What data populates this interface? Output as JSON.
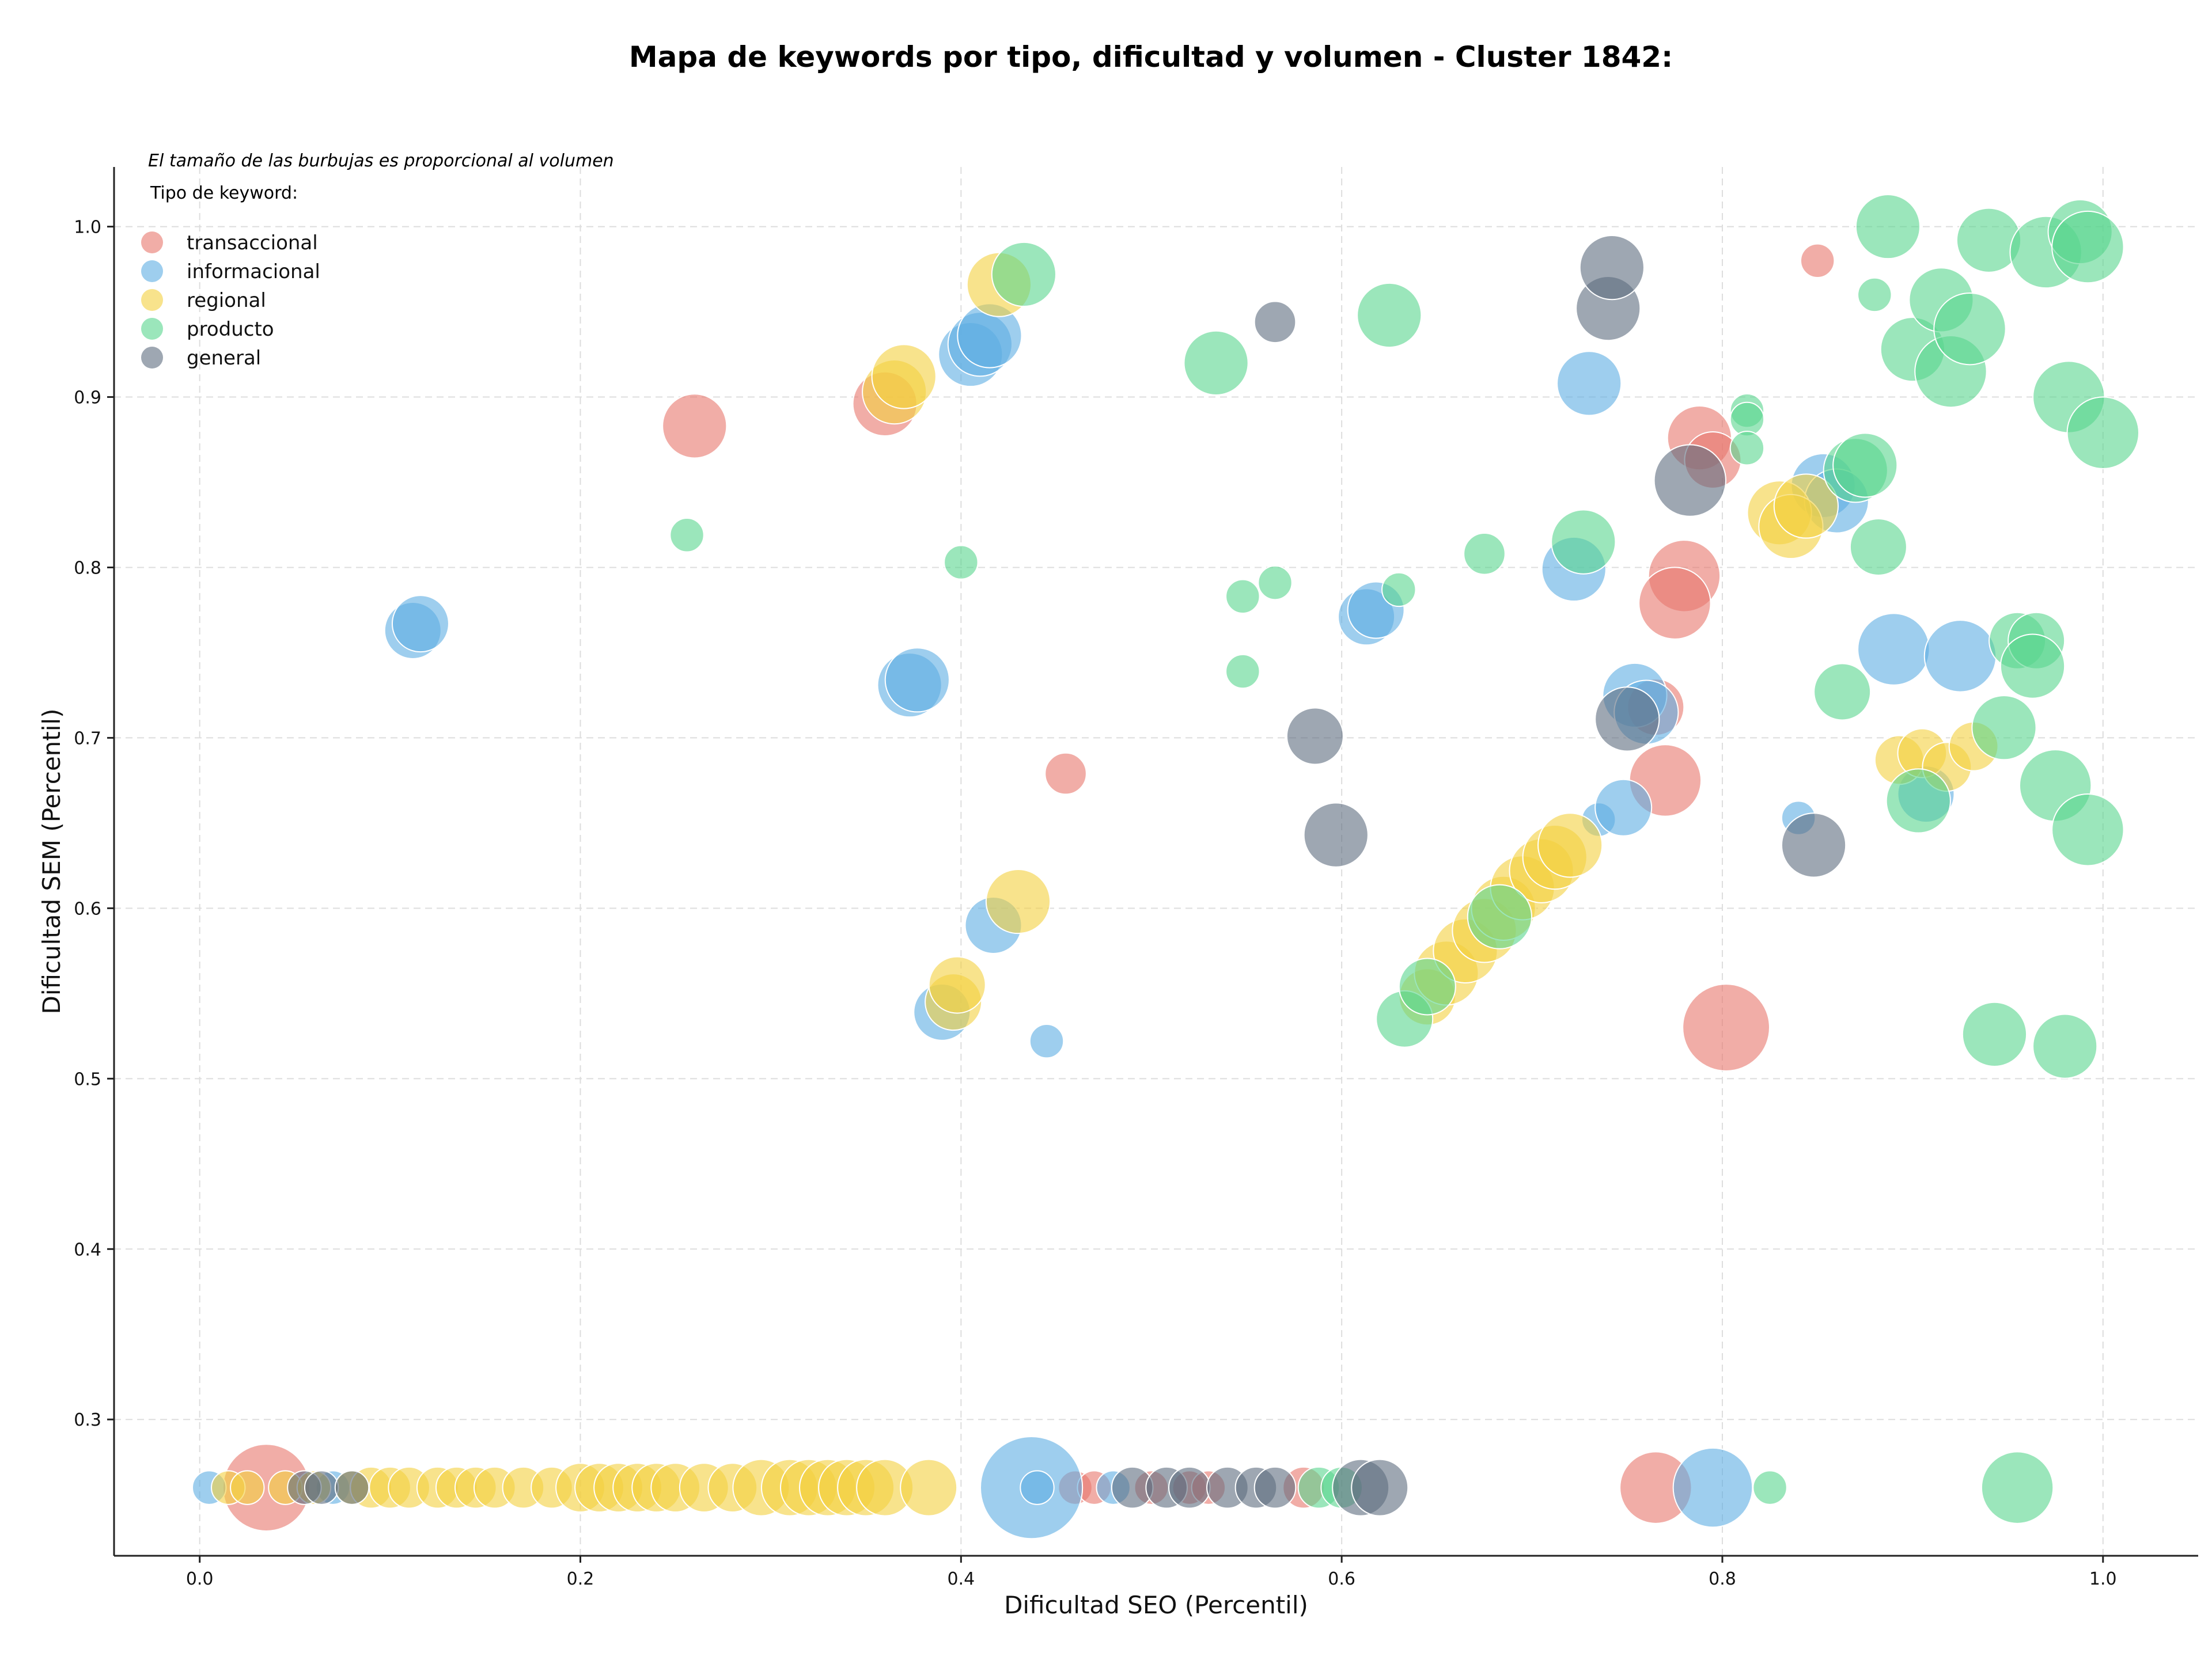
{
  "chart_data": {
    "type": "scatter",
    "title": "Mapa de keywords por tipo, dificultad y volumen - Cluster 1842:",
    "note": "El tamaño de las burbujas es proporcional al volumen",
    "xlabel": "Dificultad SEO (Percentil)",
    "ylabel": "Dificultad SEM (Percentil)",
    "xlim": [
      -0.045,
      1.05
    ],
    "ylim": [
      0.22,
      1.035
    ],
    "x_ticks": [
      "0.0",
      "0.2",
      "0.4",
      "0.6",
      "0.8",
      "1.0"
    ],
    "y_ticks": [
      "0.3",
      "0.4",
      "0.5",
      "0.6",
      "0.7",
      "0.8",
      "0.9",
      "1.0"
    ],
    "grid": true,
    "legend": {
      "title": "Tipo de keyword:",
      "position": "top-left",
      "entries": [
        "transaccional",
        "informacional",
        "regional",
        "producto",
        "general"
      ]
    },
    "colors": {
      "transaccional": "#e8766c",
      "informacional": "#5dade2",
      "regional": "#f4d03f",
      "producto": "#58d68d",
      "general": "#5d6d7e"
    },
    "series": [
      {
        "name": "transaccional",
        "points": [
          [
            0.035,
            0.26,
            9
          ],
          [
            0.26,
            0.883,
            6
          ],
          [
            0.36,
            0.896,
            6
          ],
          [
            0.455,
            0.679,
            3
          ],
          [
            0.85,
            0.98,
            2
          ],
          [
            0.788,
            0.876,
            6
          ],
          [
            0.795,
            0.863,
            5
          ],
          [
            0.78,
            0.795,
            7
          ],
          [
            0.775,
            0.779,
            7
          ],
          [
            0.765,
            0.718,
            5
          ],
          [
            0.77,
            0.675,
            7
          ],
          [
            0.802,
            0.53,
            9
          ],
          [
            0.765,
            0.26,
            7
          ],
          [
            0.46,
            0.26,
            2
          ],
          [
            0.47,
            0.26,
            2
          ],
          [
            0.5,
            0.26,
            2
          ],
          [
            0.52,
            0.26,
            2
          ],
          [
            0.53,
            0.26,
            2
          ],
          [
            0.58,
            0.26,
            3
          ]
        ]
      },
      {
        "name": "informacional",
        "points": [
          [
            0.005,
            0.26,
            2
          ],
          [
            0.07,
            0.26,
            2
          ],
          [
            0.112,
            0.763,
            5
          ],
          [
            0.116,
            0.767,
            5
          ],
          [
            0.373,
            0.731,
            6
          ],
          [
            0.377,
            0.734,
            6
          ],
          [
            0.39,
            0.539,
            5
          ],
          [
            0.417,
            0.59,
            5
          ],
          [
            0.445,
            0.522,
            2
          ],
          [
            0.405,
            0.925,
            6
          ],
          [
            0.41,
            0.931,
            6
          ],
          [
            0.415,
            0.936,
            6
          ],
          [
            0.437,
            0.26,
            11
          ],
          [
            0.44,
            0.26,
            2
          ],
          [
            0.48,
            0.26,
            2
          ],
          [
            0.613,
            0.771,
            5
          ],
          [
            0.618,
            0.775,
            5
          ],
          [
            0.722,
            0.799,
            6
          ],
          [
            0.73,
            0.908,
            6
          ],
          [
            0.735,
            0.652,
            2
          ],
          [
            0.748,
            0.659,
            5
          ],
          [
            0.754,
            0.725,
            6
          ],
          [
            0.76,
            0.715,
            6
          ],
          [
            0.84,
            0.653,
            2
          ],
          [
            0.853,
            0.848,
            6
          ],
          [
            0.86,
            0.839,
            6
          ],
          [
            0.89,
            0.752,
            7
          ],
          [
            0.907,
            0.667,
            5
          ],
          [
            0.925,
            0.748,
            7
          ],
          [
            0.795,
            0.26,
            8
          ]
        ]
      },
      {
        "name": "regional",
        "points": [
          [
            0.015,
            0.26,
            2
          ],
          [
            0.025,
            0.26,
            2
          ],
          [
            0.045,
            0.26,
            2
          ],
          [
            0.06,
            0.26,
            2
          ],
          [
            0.08,
            0.26,
            2
          ],
          [
            0.09,
            0.26,
            3
          ],
          [
            0.1,
            0.26,
            3
          ],
          [
            0.11,
            0.26,
            3
          ],
          [
            0.125,
            0.26,
            3
          ],
          [
            0.135,
            0.26,
            3
          ],
          [
            0.145,
            0.26,
            3
          ],
          [
            0.155,
            0.26,
            3
          ],
          [
            0.17,
            0.26,
            3
          ],
          [
            0.185,
            0.26,
            3
          ],
          [
            0.2,
            0.26,
            4
          ],
          [
            0.21,
            0.26,
            4
          ],
          [
            0.22,
            0.26,
            4
          ],
          [
            0.23,
            0.26,
            4
          ],
          [
            0.24,
            0.26,
            4
          ],
          [
            0.25,
            0.26,
            4
          ],
          [
            0.265,
            0.26,
            4
          ],
          [
            0.28,
            0.26,
            4
          ],
          [
            0.295,
            0.26,
            5
          ],
          [
            0.31,
            0.26,
            5
          ],
          [
            0.32,
            0.26,
            5
          ],
          [
            0.33,
            0.26,
            5
          ],
          [
            0.34,
            0.26,
            5
          ],
          [
            0.35,
            0.26,
            5
          ],
          [
            0.36,
            0.26,
            5
          ],
          [
            0.383,
            0.26,
            5
          ],
          [
            0.365,
            0.903,
            6
          ],
          [
            0.37,
            0.912,
            6
          ],
          [
            0.396,
            0.545,
            5
          ],
          [
            0.398,
            0.555,
            5
          ],
          [
            0.42,
            0.966,
            6
          ],
          [
            0.43,
            0.604,
            6
          ],
          [
            0.645,
            0.548,
            5
          ],
          [
            0.655,
            0.562,
            6
          ],
          [
            0.665,
            0.575,
            6
          ],
          [
            0.675,
            0.587,
            6
          ],
          [
            0.685,
            0.6,
            6
          ],
          [
            0.695,
            0.612,
            6
          ],
          [
            0.705,
            0.622,
            6
          ],
          [
            0.712,
            0.63,
            6
          ],
          [
            0.72,
            0.637,
            6
          ],
          [
            0.83,
            0.832,
            6
          ],
          [
            0.836,
            0.824,
            6
          ],
          [
            0.844,
            0.836,
            6
          ],
          [
            0.893,
            0.687,
            4
          ],
          [
            0.905,
            0.691,
            4
          ],
          [
            0.918,
            0.683,
            4
          ],
          [
            0.932,
            0.695,
            4
          ]
        ]
      },
      {
        "name": "producto",
        "points": [
          [
            0.256,
            0.819,
            2
          ],
          [
            0.4,
            0.803,
            2
          ],
          [
            0.433,
            0.972,
            6
          ],
          [
            0.534,
            0.92,
            6
          ],
          [
            0.548,
            0.783,
            2
          ],
          [
            0.548,
            0.739,
            2
          ],
          [
            0.565,
            0.791,
            2
          ],
          [
            0.625,
            0.948,
            6
          ],
          [
            0.63,
            0.787,
            2
          ],
          [
            0.633,
            0.535,
            5
          ],
          [
            0.645,
            0.554,
            5
          ],
          [
            0.675,
            0.808,
            3
          ],
          [
            0.683,
            0.595,
            6
          ],
          [
            0.727,
            0.815,
            6
          ],
          [
            0.813,
            0.892,
            2
          ],
          [
            0.813,
            0.887,
            2
          ],
          [
            0.813,
            0.87,
            2
          ],
          [
            0.825,
            0.26,
            2
          ],
          [
            0.87,
            0.857,
            6
          ],
          [
            0.875,
            0.86,
            6
          ],
          [
            0.863,
            0.727,
            5
          ],
          [
            0.882,
            0.812,
            5
          ],
          [
            0.88,
            0.96,
            2
          ],
          [
            0.887,
            1.0,
            6
          ],
          [
            0.9,
            0.928,
            6
          ],
          [
            0.903,
            0.663,
            6
          ],
          [
            0.915,
            0.957,
            6
          ],
          [
            0.92,
            0.915,
            7
          ],
          [
            0.93,
            0.94,
            7
          ],
          [
            0.94,
            0.992,
            6
          ],
          [
            0.943,
            0.526,
            6
          ],
          [
            0.948,
            0.706,
            6
          ],
          [
            0.955,
            0.757,
            5
          ],
          [
            0.965,
            0.757,
            5
          ],
          [
            0.963,
            0.742,
            6
          ],
          [
            0.97,
            0.985,
            7
          ],
          [
            0.975,
            0.672,
            7
          ],
          [
            0.98,
            0.519,
            6
          ],
          [
            0.982,
            0.9,
            7
          ],
          [
            0.988,
            0.997,
            6
          ],
          [
            0.992,
            0.988,
            7
          ],
          [
            0.992,
            0.646,
            7
          ],
          [
            1.0,
            0.879,
            7
          ],
          [
            0.955,
            0.26,
            7
          ],
          [
            0.588,
            0.26,
            3
          ],
          [
            0.6,
            0.26,
            3
          ]
        ]
      },
      {
        "name": "general",
        "points": [
          [
            0.055,
            0.26,
            2
          ],
          [
            0.064,
            0.26,
            2
          ],
          [
            0.08,
            0.26,
            2
          ],
          [
            0.49,
            0.26,
            3
          ],
          [
            0.508,
            0.26,
            3
          ],
          [
            0.52,
            0.26,
            3
          ],
          [
            0.54,
            0.26,
            3
          ],
          [
            0.555,
            0.26,
            3
          ],
          [
            0.565,
            0.26,
            3
          ],
          [
            0.565,
            0.944,
            3
          ],
          [
            0.586,
            0.701,
            5
          ],
          [
            0.597,
            0.643,
            6
          ],
          [
            0.61,
            0.26,
            5
          ],
          [
            0.62,
            0.26,
            5
          ],
          [
            0.74,
            0.952,
            6
          ],
          [
            0.742,
            0.976,
            6
          ],
          [
            0.75,
            0.711,
            6
          ],
          [
            0.783,
            0.851,
            7
          ],
          [
            0.848,
            0.637,
            6
          ]
        ]
      }
    ]
  }
}
